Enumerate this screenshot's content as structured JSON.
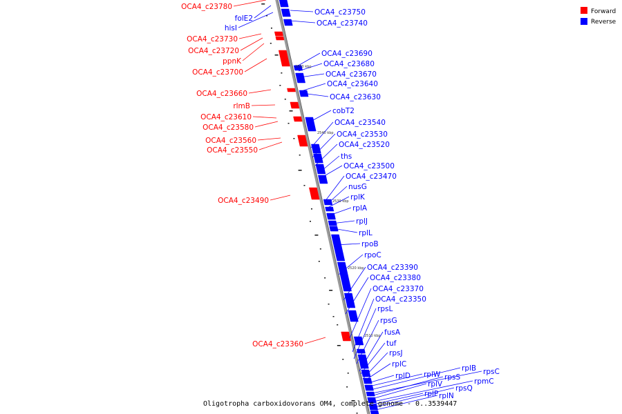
{
  "legend": [
    {
      "label": "Forward",
      "color": "#ff0000"
    },
    {
      "label": "Reverse",
      "color": "#0000ff"
    }
  ],
  "caption": "Oligotropha carboxidovorans OM4, complete genome - 0..3539447",
  "tick_labels": [
    "2550 kbp",
    "2540 kbp",
    "2530 kbp",
    "2520 kbp",
    "2510 kbp"
  ],
  "forward_genes": [
    "OCA4_c23780",
    "folE2",
    "hisI",
    "OCA4_c23730",
    "OCA4_c23720",
    "ppnK",
    "OCA4_c23700",
    "OCA4_c23660",
    "rlmB",
    "OCA4_c23610",
    "OCA4_c23580",
    "OCA4_c23560",
    "OCA4_c23550",
    "OCA4_c23490",
    "OCA4_c23360"
  ],
  "reverse_genes": [
    "OCA4_c23750",
    "OCA4_c23740",
    "OCA4_c23690",
    "OCA4_c23680",
    "OCA4_c23670",
    "OCA4_c23640",
    "OCA4_c23630",
    "cobT2",
    "OCA4_c23540",
    "OCA4_c23530",
    "OCA4_c23520",
    "ths",
    "OCA4_c23500",
    "OCA4_c23470",
    "nusG",
    "rplK",
    "rplA",
    "rplJ",
    "rplL",
    "rpoB",
    "rpoC",
    "OCA4_c23390",
    "OCA4_c23380",
    "OCA4_c23370",
    "OCA4_c23350",
    "rpsL",
    "rpsG",
    "fusA",
    "tuf",
    "rpsJ",
    "rplC",
    "rplD",
    "rplW",
    "rplB",
    "rpsC",
    "rpsS",
    "rplV",
    "rpmC",
    "rplP",
    "rpsQ",
    "rplN"
  ],
  "colors": {
    "forward": "#ff0000",
    "reverse": "#0000ff",
    "backbone": "#888888"
  }
}
